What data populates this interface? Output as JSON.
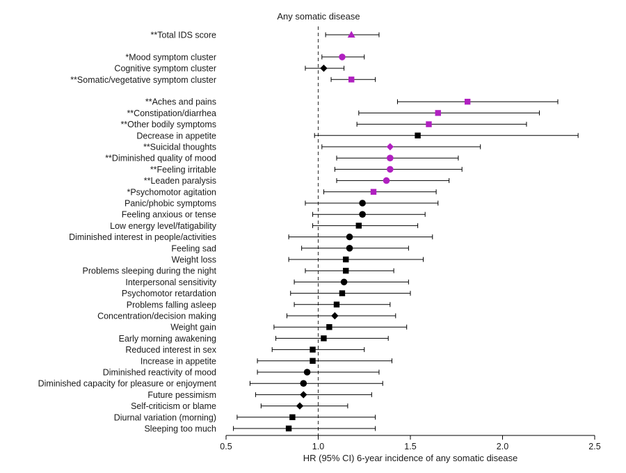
{
  "chart_data": {
    "type": "forest",
    "title": "Any somatic disease",
    "xlabel": "HR (95% CI) 6-year incidence of any somatic disease",
    "xlim": [
      0.5,
      2.5
    ],
    "xticks": [
      0.5,
      1.0,
      1.5,
      2.0,
      2.5
    ],
    "xtick_labels": [
      "0.5",
      "1.0",
      "1.5",
      "2.0",
      "2.5"
    ],
    "reference_line": 1.0,
    "colors": {
      "significant": "#b020c0",
      "nonsignificant": "#000000"
    },
    "rows": [
      {
        "label": "**Total IDS score",
        "hr": 1.18,
        "lo": 1.04,
        "hi": 1.33,
        "marker": "triangle",
        "sig": true,
        "gap": 0
      },
      {
        "label": "*Mood symptom cluster",
        "hr": 1.13,
        "lo": 1.02,
        "hi": 1.25,
        "marker": "circle",
        "sig": true,
        "gap": 1
      },
      {
        "label": "Cognitive symptom cluster",
        "hr": 1.03,
        "lo": 0.93,
        "hi": 1.14,
        "marker": "diamond",
        "sig": false,
        "gap": 0
      },
      {
        "label": "**Somatic/vegetative symptom cluster",
        "hr": 1.18,
        "lo": 1.07,
        "hi": 1.31,
        "marker": "square",
        "sig": true,
        "gap": 0
      },
      {
        "label": "**Aches and pains",
        "hr": 1.81,
        "lo": 1.43,
        "hi": 2.3,
        "marker": "square",
        "sig": true,
        "gap": 1
      },
      {
        "label": "**Constipation/diarrhea",
        "hr": 1.65,
        "lo": 1.22,
        "hi": 2.2,
        "marker": "square",
        "sig": true,
        "gap": 0
      },
      {
        "label": "**Other bodily symptoms",
        "hr": 1.6,
        "lo": 1.21,
        "hi": 2.13,
        "marker": "square",
        "sig": true,
        "gap": 0
      },
      {
        "label": "Decrease in appetite",
        "hr": 1.54,
        "lo": 0.98,
        "hi": 2.41,
        "marker": "square",
        "sig": false,
        "gap": 0
      },
      {
        "label": "**Suicidal thoughts",
        "hr": 1.39,
        "lo": 1.02,
        "hi": 1.88,
        "marker": "diamond",
        "sig": true,
        "gap": 0
      },
      {
        "label": "**Diminished quality of mood",
        "hr": 1.39,
        "lo": 1.1,
        "hi": 1.76,
        "marker": "circle",
        "sig": true,
        "gap": 0
      },
      {
        "label": "**Feeling irritable",
        "hr": 1.39,
        "lo": 1.09,
        "hi": 1.78,
        "marker": "circle",
        "sig": true,
        "gap": 0
      },
      {
        "label": "**Leaden paralysis",
        "hr": 1.37,
        "lo": 1.1,
        "hi": 1.71,
        "marker": "circle",
        "sig": true,
        "gap": 0
      },
      {
        "label": "*Psychomotor agitation",
        "hr": 1.3,
        "lo": 1.03,
        "hi": 1.64,
        "marker": "square",
        "sig": true,
        "gap": 0
      },
      {
        "label": "Panic/phobic symptoms",
        "hr": 1.24,
        "lo": 0.93,
        "hi": 1.65,
        "marker": "circle",
        "sig": false,
        "gap": 0
      },
      {
        "label": "Feeling anxious or tense",
        "hr": 1.24,
        "lo": 0.97,
        "hi": 1.58,
        "marker": "circle",
        "sig": false,
        "gap": 0
      },
      {
        "label": "Low energy level/fatigability",
        "hr": 1.22,
        "lo": 0.97,
        "hi": 1.54,
        "marker": "square",
        "sig": false,
        "gap": 0
      },
      {
        "label": "Diminished interest in people/activities",
        "hr": 1.17,
        "lo": 0.84,
        "hi": 1.62,
        "marker": "circle",
        "sig": false,
        "gap": 0
      },
      {
        "label": "Feeling sad",
        "hr": 1.17,
        "lo": 0.91,
        "hi": 1.49,
        "marker": "circle",
        "sig": false,
        "gap": 0
      },
      {
        "label": "Weight loss",
        "hr": 1.15,
        "lo": 0.84,
        "hi": 1.57,
        "marker": "square",
        "sig": false,
        "gap": 0
      },
      {
        "label": "Problems sleeping during the night",
        "hr": 1.15,
        "lo": 0.93,
        "hi": 1.41,
        "marker": "square",
        "sig": false,
        "gap": 0
      },
      {
        "label": "Interpersonal sensitivity",
        "hr": 1.14,
        "lo": 0.87,
        "hi": 1.49,
        "marker": "circle",
        "sig": false,
        "gap": 0
      },
      {
        "label": "Psychomotor retardation",
        "hr": 1.13,
        "lo": 0.85,
        "hi": 1.5,
        "marker": "square",
        "sig": false,
        "gap": 0
      },
      {
        "label": "Problems falling asleep",
        "hr": 1.1,
        "lo": 0.87,
        "hi": 1.39,
        "marker": "square",
        "sig": false,
        "gap": 0
      },
      {
        "label": "Concentration/decision making",
        "hr": 1.09,
        "lo": 0.83,
        "hi": 1.42,
        "marker": "diamond",
        "sig": false,
        "gap": 0
      },
      {
        "label": "Weight gain",
        "hr": 1.06,
        "lo": 0.76,
        "hi": 1.48,
        "marker": "square",
        "sig": false,
        "gap": 0
      },
      {
        "label": "Early morning awakening",
        "hr": 1.03,
        "lo": 0.77,
        "hi": 1.38,
        "marker": "square",
        "sig": false,
        "gap": 0
      },
      {
        "label": "Reduced interest in sex",
        "hr": 0.97,
        "lo": 0.75,
        "hi": 1.25,
        "marker": "square",
        "sig": false,
        "gap": 0
      },
      {
        "label": "Increase in appetite",
        "hr": 0.97,
        "lo": 0.67,
        "hi": 1.4,
        "marker": "square",
        "sig": false,
        "gap": 0
      },
      {
        "label": "Diminished reactivity of mood",
        "hr": 0.94,
        "lo": 0.67,
        "hi": 1.33,
        "marker": "circle",
        "sig": false,
        "gap": 0
      },
      {
        "label": "Diminished capacity for pleasure or enjoyment",
        "hr": 0.92,
        "lo": 0.63,
        "hi": 1.35,
        "marker": "circle",
        "sig": false,
        "gap": 0
      },
      {
        "label": "Future pessimism",
        "hr": 0.92,
        "lo": 0.66,
        "hi": 1.29,
        "marker": "diamond",
        "sig": false,
        "gap": 0
      },
      {
        "label": "Self-criticism or blame",
        "hr": 0.9,
        "lo": 0.69,
        "hi": 1.16,
        "marker": "diamond",
        "sig": false,
        "gap": 0
      },
      {
        "label": "Diurnal variation (morning)",
        "hr": 0.86,
        "lo": 0.56,
        "hi": 1.31,
        "marker": "square",
        "sig": false,
        "gap": 0
      },
      {
        "label": "Sleeping too much",
        "hr": 0.84,
        "lo": 0.54,
        "hi": 1.31,
        "marker": "square",
        "sig": false,
        "gap": 0
      }
    ]
  }
}
